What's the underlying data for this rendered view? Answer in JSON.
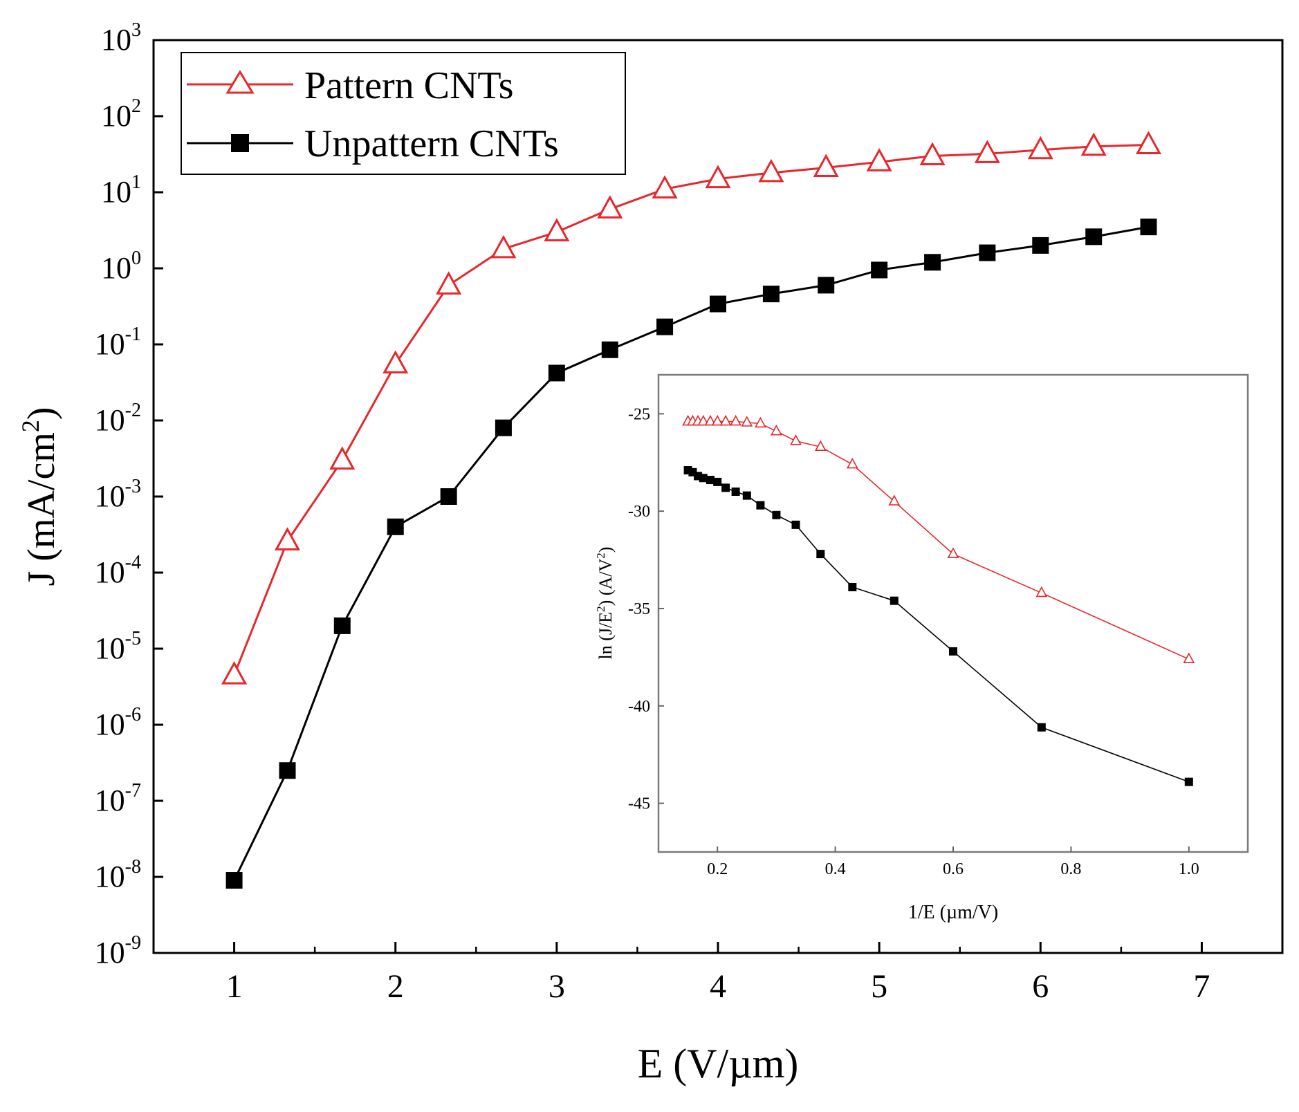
{
  "chart_data": [
    {
      "id": "main",
      "type": "line",
      "xlabel": "E (V/µm)",
      "ylabel_base": "J (mA/cm",
      "ylabel_sup": "2",
      "ylabel_tail": ")",
      "xlim": [
        0.5,
        7.5
      ],
      "ylim_log10": [
        -9,
        3
      ],
      "y_scale": "log",
      "x_ticks": [
        1,
        2,
        3,
        4,
        5,
        6,
        7
      ],
      "x_tick_labels": [
        "1",
        "2",
        "3",
        "4",
        "5",
        "6",
        "7"
      ],
      "x_minor_ticks": [
        1.5,
        2.5,
        3.5,
        4.5,
        5.5,
        6.5
      ],
      "y_ticks": [
        {
          "exp": 3,
          "base": "10",
          "sup": "3"
        },
        {
          "exp": 2,
          "base": "10",
          "sup": "2"
        },
        {
          "exp": 1,
          "base": "10",
          "sup": "1"
        },
        {
          "exp": 0,
          "base": "10",
          "sup": "0"
        },
        {
          "exp": -1,
          "base": "10",
          "sup": "-1"
        },
        {
          "exp": -2,
          "base": "10",
          "sup": "-2"
        },
        {
          "exp": -3,
          "base": "10",
          "sup": "-3"
        },
        {
          "exp": -4,
          "base": "10",
          "sup": "-4"
        },
        {
          "exp": -5,
          "base": "10",
          "sup": "-5"
        },
        {
          "exp": -6,
          "base": "10",
          "sup": "-6"
        },
        {
          "exp": -7,
          "base": "10",
          "sup": "-7"
        },
        {
          "exp": -8,
          "base": "10",
          "sup": "-8"
        },
        {
          "exp": -9,
          "base": "10",
          "sup": "-9"
        }
      ],
      "grid": false,
      "legend_position": "top-left",
      "series": [
        {
          "name": "Pattern CNTs",
          "color": "#e8262b",
          "marker": "open-triangle",
          "x": [
            1.0,
            1.33,
            1.67,
            2.0,
            2.33,
            2.67,
            3.0,
            3.33,
            3.67,
            4.0,
            4.33,
            4.67,
            5.0,
            5.33,
            5.67,
            6.0,
            6.33,
            6.67
          ],
          "y": [
            4.5e-06,
            0.00026,
            0.003,
            0.055,
            0.6,
            1.8,
            3.0,
            6.0,
            11,
            15,
            18,
            21,
            25,
            30,
            32,
            36,
            40,
            42
          ]
        },
        {
          "name": "Unpattern CNTs",
          "color": "#000000",
          "marker": "filled-square",
          "x": [
            1.0,
            1.33,
            1.67,
            2.0,
            2.33,
            2.67,
            3.0,
            3.33,
            3.67,
            4.0,
            4.33,
            4.67,
            5.0,
            5.33,
            5.67,
            6.0,
            6.33,
            6.67
          ],
          "y": [
            9e-09,
            2.5e-07,
            2e-05,
            0.0004,
            0.001,
            0.008,
            0.042,
            0.085,
            0.17,
            0.34,
            0.46,
            0.6,
            0.95,
            1.2,
            1.6,
            2.0,
            2.6,
            3.5
          ]
        }
      ]
    },
    {
      "id": "inset",
      "type": "line",
      "xlabel": "1/E (µm/V)",
      "ylabel_base": "ln (J/E",
      "ylabel_sup": "2",
      "ylabel_mid": ") (A/V",
      "ylabel_sup2": "2",
      "ylabel_tail": ")",
      "xlim": [
        0.1,
        1.1
      ],
      "ylim": [
        -47.5,
        -23
      ],
      "x_ticks": [
        0.2,
        0.4,
        0.6,
        0.8,
        1.0
      ],
      "x_tick_labels": [
        "0.2",
        "0.4",
        "0.6",
        "0.8",
        "1.0"
      ],
      "y_ticks": [
        -25,
        -30,
        -35,
        -40,
        -45
      ],
      "y_tick_labels": [
        "-25",
        "-30",
        "-35",
        "-40",
        "-45"
      ],
      "grid": false,
      "series": [
        {
          "color": "#e8262b",
          "marker": "open-triangle",
          "x": [
            0.15,
            0.158,
            0.167,
            0.176,
            0.188,
            0.2,
            0.214,
            0.231,
            0.25,
            0.273,
            0.3,
            0.333,
            0.375,
            0.429,
            0.5,
            0.6,
            0.75,
            1.0
          ],
          "y": [
            -25.4,
            -25.4,
            -25.4,
            -25.4,
            -25.4,
            -25.4,
            -25.4,
            -25.4,
            -25.45,
            -25.5,
            -25.9,
            -26.4,
            -26.7,
            -27.6,
            -29.5,
            -32.2,
            -34.2,
            -37.6
          ]
        },
        {
          "color": "#000000",
          "marker": "filled-square",
          "x": [
            0.15,
            0.158,
            0.167,
            0.176,
            0.188,
            0.2,
            0.214,
            0.231,
            0.25,
            0.273,
            0.3,
            0.333,
            0.375,
            0.429,
            0.5,
            0.6,
            0.75,
            1.0
          ],
          "y": [
            -27.9,
            -28.0,
            -28.2,
            -28.3,
            -28.4,
            -28.5,
            -28.8,
            -29.0,
            -29.2,
            -29.7,
            -30.2,
            -30.7,
            -32.2,
            -33.9,
            -34.6,
            -37.2,
            -41.1,
            -43.9
          ]
        }
      ]
    }
  ]
}
